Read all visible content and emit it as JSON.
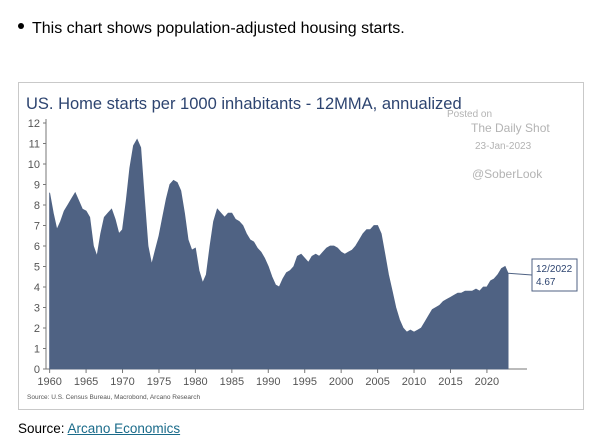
{
  "bullet": {
    "text": "This chart shows population-adjusted housing starts."
  },
  "source": {
    "label": "Source:",
    "link_text": "Arcano Economics"
  },
  "colors": {
    "area_fill": "#4f6283",
    "title": "#2d4470",
    "axis_text": "#555555",
    "watermark": "#b3b3b3",
    "callout_border": "#4f6283"
  },
  "watermark": {
    "posted_on": "Posted on",
    "site": "The Daily Shot",
    "date": "23-Jan-2023",
    "handle": "@SoberLook"
  },
  "chart_data": {
    "type": "area",
    "title": "US. Home starts per 1000 inhabitants - 12MMA, annualized",
    "xlabel": "",
    "ylabel": "",
    "xlim": [
      1959.5,
      2025.5
    ],
    "ylim": [
      0,
      12
    ],
    "x_ticks": [
      "1960",
      "1965",
      "1970",
      "1975",
      "1980",
      "1985",
      "1990",
      "1995",
      "2000",
      "2005",
      "2010",
      "2015",
      "2020"
    ],
    "y_ticks": [
      "0",
      "1",
      "2",
      "3",
      "4",
      "5",
      "6",
      "7",
      "8",
      "9",
      "10",
      "11",
      "12"
    ],
    "footnote": "Source: U.S. Census Bureau, Macrobond, Arcano Research",
    "callout": {
      "label": "12/2022",
      "value": "4.67"
    },
    "grid": false,
    "series": [
      {
        "x": [
          1960.0,
          1960.5,
          1961.0,
          1961.5,
          1962.0,
          1962.5,
          1963.0,
          1963.5,
          1964.0,
          1964.5,
          1965.0,
          1965.5,
          1966.0,
          1966.5,
          1967.0,
          1967.5,
          1968.0,
          1968.5,
          1969.0,
          1969.5,
          1970.0,
          1970.5,
          1971.0,
          1971.5,
          1972.0,
          1972.5,
          1973.0,
          1973.5,
          1974.0,
          1974.5,
          1975.0,
          1975.5,
          1976.0,
          1976.5,
          1977.0,
          1977.5,
          1978.0,
          1978.5,
          1979.0,
          1979.5,
          1980.0,
          1980.5,
          1981.0,
          1981.5,
          1982.0,
          1982.5,
          1983.0,
          1983.5,
          1984.0,
          1984.5,
          1985.0,
          1985.5,
          1986.0,
          1986.5,
          1987.0,
          1987.5,
          1988.0,
          1988.5,
          1989.0,
          1989.5,
          1990.0,
          1990.5,
          1991.0,
          1991.5,
          1992.0,
          1992.5,
          1993.0,
          1993.5,
          1994.0,
          1994.5,
          1995.0,
          1995.5,
          1996.0,
          1996.5,
          1997.0,
          1997.5,
          1998.0,
          1998.5,
          1999.0,
          1999.5,
          2000.0,
          2000.5,
          2001.0,
          2001.5,
          2002.0,
          2002.5,
          2003.0,
          2003.5,
          2004.0,
          2004.5,
          2005.0,
          2005.5,
          2006.0,
          2006.5,
          2007.0,
          2007.5,
          2008.0,
          2008.5,
          2009.0,
          2009.5,
          2010.0,
          2010.5,
          2011.0,
          2011.5,
          2012.0,
          2012.5,
          2013.0,
          2013.5,
          2014.0,
          2014.5,
          2015.0,
          2015.5,
          2016.0,
          2016.5,
          2017.0,
          2017.5,
          2018.0,
          2018.5,
          2019.0,
          2019.5,
          2020.0,
          2020.5,
          2021.0,
          2021.5,
          2022.0,
          2022.5,
          2022.9
        ],
        "values": [
          8.6,
          7.6,
          6.8,
          7.2,
          7.7,
          8.0,
          8.3,
          8.6,
          8.2,
          7.8,
          7.7,
          7.4,
          6.0,
          5.5,
          6.6,
          7.4,
          7.6,
          7.8,
          7.3,
          6.6,
          6.8,
          8.2,
          9.8,
          10.9,
          11.2,
          10.8,
          8.3,
          6.0,
          5.1,
          5.8,
          6.5,
          7.4,
          8.3,
          9.0,
          9.2,
          9.1,
          8.7,
          7.6,
          6.3,
          5.8,
          5.9,
          4.8,
          4.2,
          4.6,
          6.0,
          7.2,
          7.8,
          7.6,
          7.4,
          7.6,
          7.6,
          7.3,
          7.2,
          7.0,
          6.6,
          6.3,
          6.2,
          5.9,
          5.7,
          5.4,
          5.0,
          4.5,
          4.1,
          4.0,
          4.4,
          4.7,
          4.8,
          5.0,
          5.5,
          5.6,
          5.4,
          5.2,
          5.5,
          5.6,
          5.5,
          5.7,
          5.9,
          6.0,
          6.0,
          5.9,
          5.7,
          5.6,
          5.7,
          5.8,
          6.0,
          6.3,
          6.6,
          6.8,
          6.8,
          7.0,
          7.0,
          6.6,
          5.6,
          4.6,
          3.8,
          3.0,
          2.4,
          2.0,
          1.8,
          1.9,
          1.8,
          1.9,
          2.0,
          2.3,
          2.6,
          2.9,
          3.0,
          3.1,
          3.3,
          3.4,
          3.5,
          3.6,
          3.7,
          3.7,
          3.8,
          3.8,
          3.8,
          3.9,
          3.8,
          4.0,
          4.0,
          4.3,
          4.4,
          4.6,
          4.9,
          5.0,
          4.67
        ]
      }
    ]
  }
}
